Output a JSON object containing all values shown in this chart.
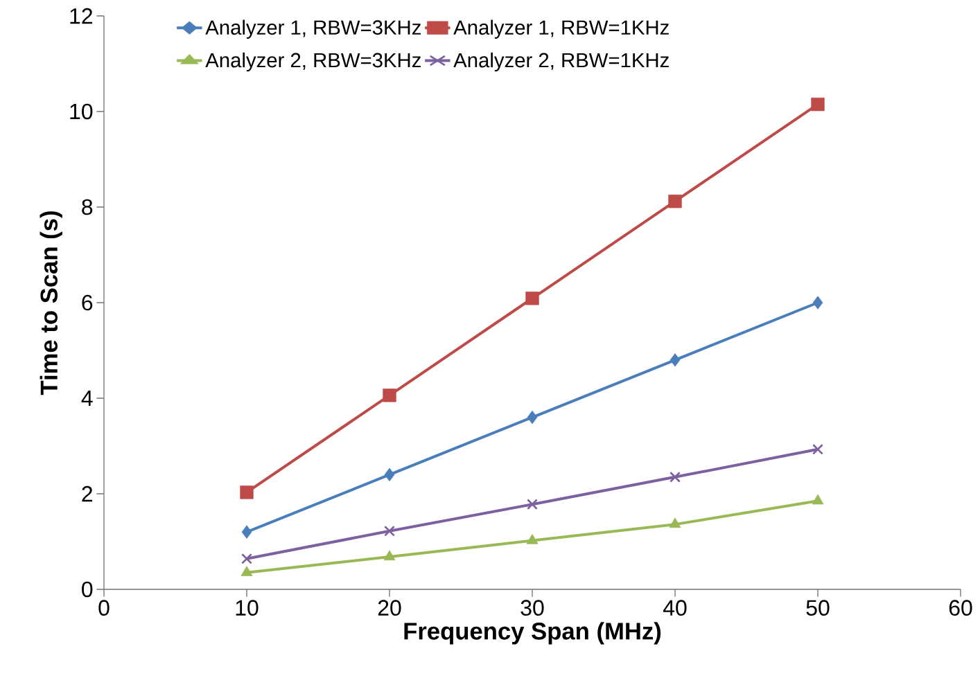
{
  "chart_data": {
    "type": "line",
    "xlabel": "Frequency Span (MHz)",
    "ylabel": "Time to Scan (s)",
    "x": [
      10,
      20,
      30,
      40,
      50
    ],
    "series": [
      {
        "name": "Analyzer 1, RBW=3KHz",
        "color": "#4a7ebb",
        "marker": "diamond",
        "values": [
          1.2,
          2.4,
          3.6,
          4.8,
          6.0
        ]
      },
      {
        "name": "Analyzer 1, RBW=1KHz",
        "color": "#be4b48",
        "marker": "square",
        "values": [
          2.03,
          4.06,
          6.09,
          8.12,
          10.15
        ]
      },
      {
        "name": "Analyzer 2, RBW=3KHz",
        "color": "#98b954",
        "marker": "triangle",
        "values": [
          0.35,
          0.68,
          1.02,
          1.36,
          1.85
        ]
      },
      {
        "name": "Analyzer 2, RBW=1KHz",
        "color": "#7d60a0",
        "marker": "cross",
        "values": [
          0.64,
          1.22,
          1.78,
          2.35,
          2.93
        ]
      }
    ],
    "xlim": [
      0,
      60
    ],
    "ylim": [
      0,
      12
    ],
    "xticks": [
      0,
      10,
      20,
      30,
      40,
      50,
      60
    ],
    "yticks": [
      0,
      2,
      4,
      6,
      8,
      10,
      12
    ],
    "grid": false,
    "legend": "top",
    "line_style": "solid"
  }
}
